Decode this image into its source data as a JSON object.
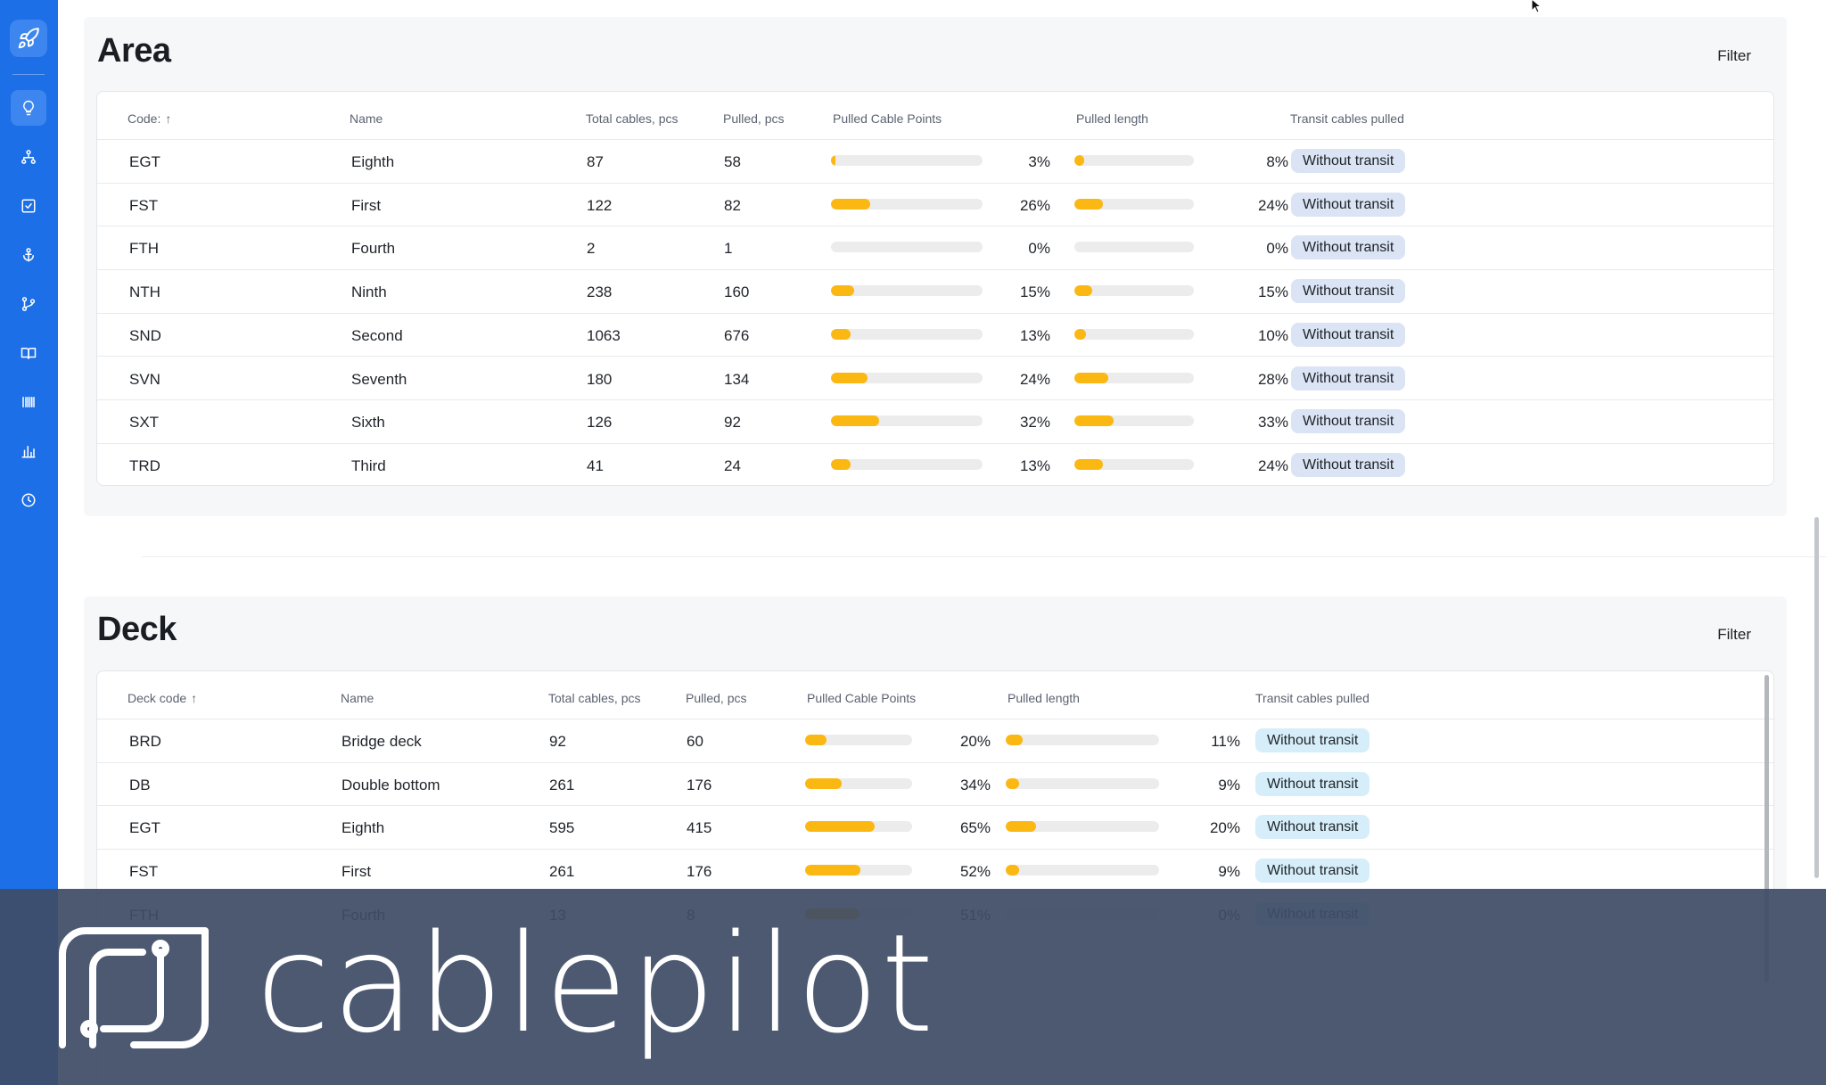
{
  "sidebar": {
    "logo_icon": "rocket-icon",
    "items": [
      {
        "icon": "lightbulb-icon",
        "active": true
      },
      {
        "icon": "hierarchy-icon",
        "active": false
      },
      {
        "icon": "checkbox-icon",
        "active": false
      },
      {
        "icon": "anchor-icon",
        "active": false
      },
      {
        "icon": "git-branch-icon",
        "active": false
      },
      {
        "icon": "book-icon",
        "active": false
      },
      {
        "icon": "barcode-icon",
        "active": false
      },
      {
        "icon": "bar-chart-icon",
        "active": false
      },
      {
        "icon": "clock-icon",
        "active": false
      }
    ]
  },
  "area": {
    "title": "Area",
    "filter_label": "Filter",
    "columns": {
      "code": "Code:",
      "name": "Name",
      "total": "Total cables, pcs",
      "pulled": "Pulled, pcs",
      "points": "Pulled Cable Points",
      "length": "Pulled length",
      "transit": "Transit cables pulled"
    },
    "rows": [
      {
        "code": "EGT",
        "name": "Eighth",
        "total": "87",
        "pulled": "58",
        "points_pct": 3,
        "points_label": "3%",
        "length_pct": 8,
        "length_label": "8%",
        "transit": "Without transit"
      },
      {
        "code": "FST",
        "name": "First",
        "total": "122",
        "pulled": "82",
        "points_pct": 26,
        "points_label": "26%",
        "length_pct": 24,
        "length_label": "24%",
        "transit": "Without transit"
      },
      {
        "code": "FTH",
        "name": "Fourth",
        "total": "2",
        "pulled": "1",
        "points_pct": 0,
        "points_label": "0%",
        "length_pct": 0,
        "length_label": "0%",
        "transit": "Without transit"
      },
      {
        "code": "NTH",
        "name": "Ninth",
        "total": "238",
        "pulled": "160",
        "points_pct": 15,
        "points_label": "15%",
        "length_pct": 15,
        "length_label": "15%",
        "transit": "Without transit"
      },
      {
        "code": "SND",
        "name": "Second",
        "total": "1063",
        "pulled": "676",
        "points_pct": 13,
        "points_label": "13%",
        "length_pct": 10,
        "length_label": "10%",
        "transit": "Without transit"
      },
      {
        "code": "SVN",
        "name": "Seventh",
        "total": "180",
        "pulled": "134",
        "points_pct": 24,
        "points_label": "24%",
        "length_pct": 28,
        "length_label": "28%",
        "transit": "Without transit"
      },
      {
        "code": "SXT",
        "name": "Sixth",
        "total": "126",
        "pulled": "92",
        "points_pct": 32,
        "points_label": "32%",
        "length_pct": 33,
        "length_label": "33%",
        "transit": "Without transit"
      },
      {
        "code": "TRD",
        "name": "Third",
        "total": "41",
        "pulled": "24",
        "points_pct": 13,
        "points_label": "13%",
        "length_pct": 24,
        "length_label": "24%",
        "transit": "Without transit"
      }
    ]
  },
  "deck": {
    "title": "Deck",
    "filter_label": "Filter",
    "columns": {
      "code": "Deck code",
      "name": "Name",
      "total": "Total cables, pcs",
      "pulled": "Pulled, pcs",
      "points": "Pulled Cable Points",
      "length": "Pulled length",
      "transit": "Transit cables pulled"
    },
    "rows": [
      {
        "code": "BRD",
        "name": "Bridge deck",
        "total": "92",
        "pulled": "60",
        "points_pct": 20,
        "points_label": "20%",
        "length_pct": 11,
        "length_label": "11%",
        "transit": "Without transit"
      },
      {
        "code": "DB",
        "name": "Double bottom",
        "total": "261",
        "pulled": "176",
        "points_pct": 34,
        "points_label": "34%",
        "length_pct": 9,
        "length_label": "9%",
        "transit": "Without transit"
      },
      {
        "code": "EGT",
        "name": "Eighth",
        "total": "595",
        "pulled": "415",
        "points_pct": 65,
        "points_label": "65%",
        "length_pct": 20,
        "length_label": "20%",
        "transit": "Without transit"
      },
      {
        "code": "FST",
        "name": "First",
        "total": "261",
        "pulled": "176",
        "points_pct": 52,
        "points_label": "52%",
        "length_pct": 9,
        "length_label": "9%",
        "transit": "Without transit"
      },
      {
        "code": "FTH",
        "name": "Fourth",
        "total": "13",
        "pulled": "8",
        "points_pct": 51,
        "points_label": "51%",
        "length_pct": 0,
        "length_label": "0%",
        "transit": "Without transit"
      }
    ]
  },
  "overlay": {
    "brand": "cablepilot"
  },
  "colors": {
    "sidebar": "#1c6fe6",
    "bar_fill": "#fbb712",
    "bar_track": "#ececec"
  }
}
